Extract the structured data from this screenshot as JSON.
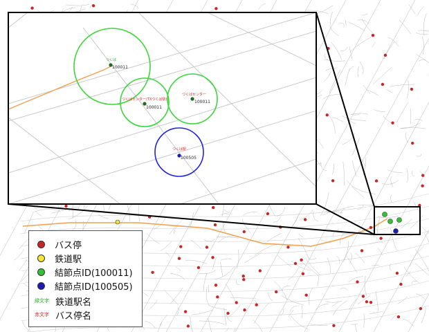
{
  "colors": {
    "bus_stop": "#c62828",
    "railway_station": "#f5e634",
    "node_100011": "#34c234",
    "node_100505": "#1c1cb4",
    "station_name_text": "#22aa22",
    "bus_stop_name_text": "#e02020",
    "buffer_green": "#3bd63b",
    "buffer_blue": "#2222dd",
    "rail_line": "#f0a050"
  },
  "legend": {
    "items": [
      {
        "label": "バス停",
        "color": "#c62828"
      },
      {
        "label": "鉄道駅",
        "color": "#f5e634"
      },
      {
        "label": "結節点ID(100011)",
        "color": "#34c234"
      },
      {
        "label": "結節点ID(100505)",
        "color": "#1c1cb4"
      }
    ],
    "text_items": [
      {
        "sample": "緑文字",
        "sample_color": "#22aa22",
        "label": "鉄道駅名"
      },
      {
        "sample": "赤文字",
        "sample_color": "#e02020",
        "label": "バス停名"
      }
    ]
  },
  "inset": {
    "nodes": [
      {
        "name": "つくば",
        "name_color": "#22aa22",
        "id": "100011",
        "buffer": "green"
      },
      {
        "name": "つくばセンター(TXつくば駅)",
        "name_color": "#e02020",
        "id": "100011",
        "buffer": "green"
      },
      {
        "name": "つくばセンター",
        "name_color": "#e02020",
        "id": "100011",
        "buffer": "green"
      },
      {
        "name": "つくば駅",
        "name_color": "#e02020",
        "id": "100505",
        "buffer": "blue"
      }
    ]
  }
}
